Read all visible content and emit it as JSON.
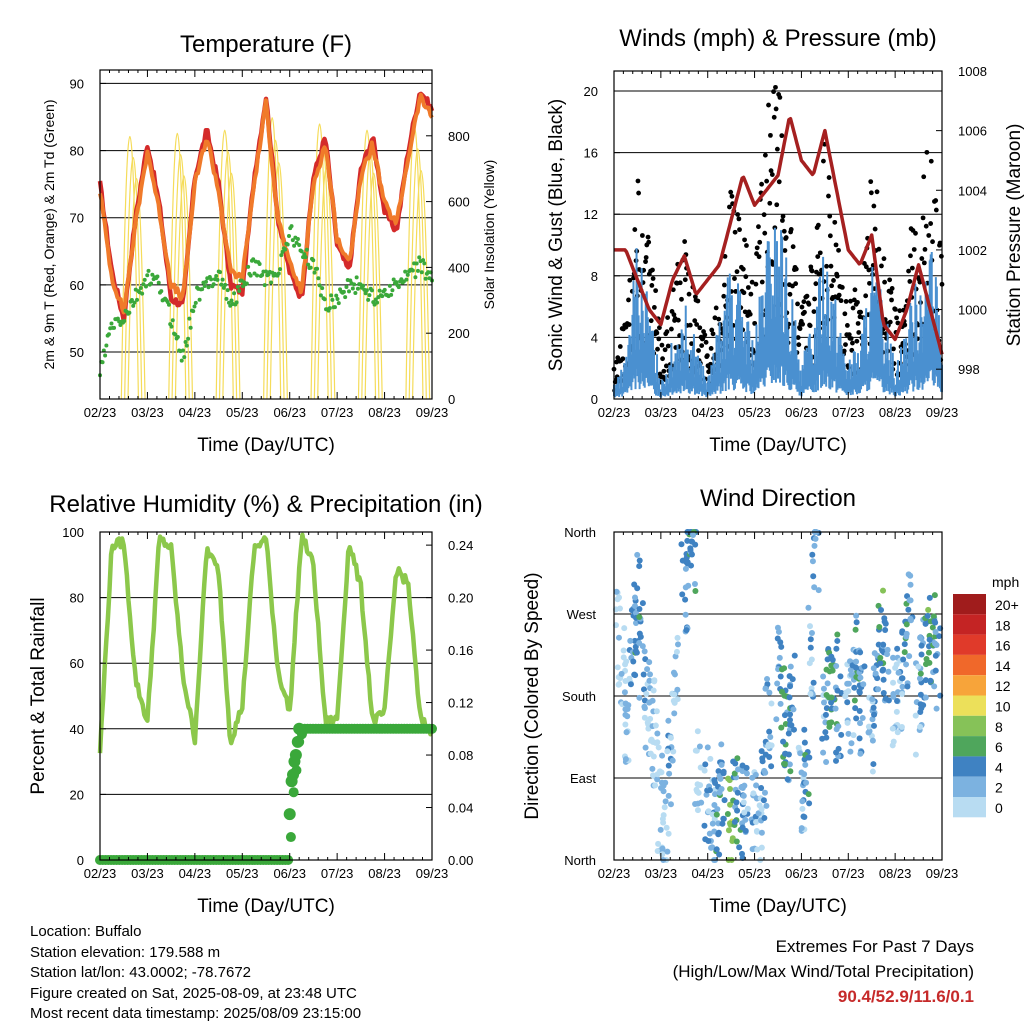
{
  "colors": {
    "temp_2m": "#d42a2a",
    "temp_9m": "#f07a2a",
    "dewpoint": "#3aa83a",
    "solar": "#f5dc5a",
    "gust": "#000000",
    "sonic": "#4a90d0",
    "pressure": "#a52020",
    "rh": "#8cc84b",
    "rain": "#3aa83a",
    "extremes": "#c62a2a"
  },
  "info": {
    "location": "Location: Buffalo",
    "elevation": "Station elevation: 179.588 m",
    "latlon": "Station lat/lon: 43.0002; -78.7672",
    "created": "Figure created on Sat, 2025-08-09, at 23:48 UTC",
    "recent": "Most recent data timestamp: 2025/08/09 23:15:00"
  },
  "extremes": {
    "title": "Extremes For Past 7 Days",
    "subtitle": "(High/Low/Max Wind/Total Precipitation)",
    "value": "90.4/52.9/11.6/0.1"
  },
  "chart_data": [
    {
      "type": "line",
      "title": "Temperature (F)",
      "xlabel": "Time (Day/UTC)",
      "ylabel": "2m & 9m T (Red, Orange) & 2m Td (Green)",
      "y2label": "Solar Insolation (Yellow)",
      "x_ticks": [
        "02/23",
        "03/23",
        "04/23",
        "05/23",
        "06/23",
        "07/23",
        "08/23",
        "09/23"
      ],
      "ylim": [
        43,
        92
      ],
      "y_ticks": [
        50,
        60,
        70,
        80,
        90
      ],
      "y2lim": [
        0,
        1000
      ],
      "y2_ticks": [
        0,
        200,
        400,
        600,
        800
      ],
      "grid_lines": [
        50,
        60,
        70,
        80,
        90
      ],
      "series": [
        {
          "name": "2m T",
          "kind": "line",
          "x": [
            0,
            0.25,
            0.5,
            0.75,
            1,
            1.25,
            1.5,
            1.75,
            2,
            2.25,
            2.5,
            2.75,
            3,
            3.25,
            3.5,
            3.75,
            4,
            4.25,
            4.5,
            4.75,
            5,
            5.25,
            5.5,
            5.75,
            6,
            6.25,
            6.5,
            6.75,
            7
          ],
          "values": [
            75,
            62,
            55,
            70,
            81,
            72,
            58,
            57,
            76,
            83,
            75,
            60,
            59,
            76,
            88,
            70,
            62,
            58,
            76,
            82,
            66,
            62,
            77,
            82,
            71,
            68,
            80,
            89,
            86
          ]
        },
        {
          "name": "9m T",
          "kind": "line",
          "x": [
            0,
            0.25,
            0.5,
            0.75,
            1,
            1.25,
            1.5,
            1.75,
            2,
            2.25,
            2.5,
            2.75,
            3,
            3.25,
            3.5,
            3.75,
            4,
            4.25,
            4.5,
            4.75,
            5,
            5.25,
            5.5,
            5.75,
            6,
            6.25,
            6.5,
            6.75,
            7
          ],
          "values": [
            74,
            61,
            56,
            69,
            80,
            71,
            60,
            58,
            75,
            82,
            74,
            62,
            61,
            75,
            87,
            70,
            63,
            59,
            75,
            81,
            67,
            63,
            76,
            81,
            72,
            69,
            79,
            88,
            85
          ]
        },
        {
          "name": "2m Td",
          "kind": "points",
          "x": [
            0,
            0.25,
            0.5,
            0.75,
            1,
            1.25,
            1.5,
            1.75,
            2,
            2.25,
            2.5,
            2.75,
            3,
            3.25,
            3.5,
            3.75,
            4,
            4.25,
            4.5,
            4.75,
            5,
            5.25,
            5.5,
            5.75,
            6,
            6.25,
            6.5,
            6.75,
            7
          ],
          "values": [
            47,
            54,
            55,
            58,
            61,
            60,
            55,
            49,
            58,
            60,
            62,
            57,
            60,
            63,
            61,
            62,
            68,
            65,
            63,
            57,
            58,
            60,
            60,
            58,
            59,
            60,
            61,
            63,
            61
          ]
        },
        {
          "name": "Solar",
          "kind": "solar",
          "y_axis": "right",
          "x": [
            0.7,
            1.7,
            2.7,
            3.7,
            4.7,
            5.7,
            6.7
          ],
          "values": [
            840,
            850,
            860,
            900,
            880,
            860,
            870
          ]
        }
      ]
    },
    {
      "type": "line",
      "title": "Winds (mph) & Pressure (mb)",
      "xlabel": "Time (Day/UTC)",
      "ylabel": "Sonic Wind & Gust (Blue, Black)",
      "y2label": "Station Pressure (Maroon)",
      "x_ticks": [
        "02/23",
        "03/23",
        "04/23",
        "05/23",
        "06/23",
        "07/23",
        "08/23",
        "09/23"
      ],
      "ylim": [
        0,
        21.3
      ],
      "y_ticks": [
        0,
        4,
        8,
        12,
        16,
        20
      ],
      "y2lim": [
        997,
        1008
      ],
      "y2_ticks": [
        998,
        1000,
        1002,
        1004,
        1006,
        1008
      ],
      "grid_lines": [
        4,
        8,
        12,
        16,
        20
      ],
      "series": [
        {
          "name": "Gust",
          "kind": "points",
          "x": [
            0,
            0.25,
            0.5,
            0.75,
            1,
            1.25,
            1.5,
            1.75,
            2,
            2.25,
            2.5,
            2.75,
            3,
            3.25,
            3.5,
            3.75,
            4,
            4.25,
            4.5,
            4.75,
            5,
            5.25,
            5.5,
            5.75,
            6,
            6.25,
            6.5,
            6.75,
            7
          ],
          "values": [
            2,
            5,
            13,
            10,
            3,
            6,
            9,
            6,
            3,
            8,
            12,
            9,
            7,
            16,
            18,
            11,
            5,
            8,
            14,
            9,
            5,
            7,
            13,
            10,
            5,
            8,
            12,
            14,
            8
          ]
        },
        {
          "name": "Sonic Wind",
          "kind": "line",
          "x": [
            0,
            0.25,
            0.5,
            0.75,
            1,
            1.25,
            1.5,
            1.75,
            2,
            2.25,
            2.5,
            2.75,
            3,
            3.25,
            3.5,
            3.75,
            4,
            4.25,
            4.5,
            4.75,
            5,
            5.25,
            5.5,
            5.75,
            6,
            6.25,
            6.5,
            6.75,
            7
          ],
          "values": [
            1,
            2,
            8,
            5,
            1,
            3,
            5,
            3,
            1,
            4,
            7,
            5,
            3,
            8,
            10,
            6,
            2,
            4,
            9,
            5,
            2,
            3,
            7,
            5,
            2,
            4,
            7,
            8,
            4
          ]
        },
        {
          "name": "Pressure",
          "kind": "line",
          "y_axis": "right",
          "x": [
            0,
            0.25,
            0.5,
            0.75,
            1,
            1.25,
            1.5,
            1.75,
            2,
            2.25,
            2.5,
            2.75,
            3,
            3.25,
            3.5,
            3.75,
            4,
            4.25,
            4.5,
            4.75,
            5,
            5.25,
            5.5,
            5.75,
            6,
            6.25,
            6.5,
            6.75,
            7
          ],
          "values": [
            1002,
            1002,
            1001,
            1000,
            999.5,
            1001,
            1001.8,
            1000.5,
            1001,
            1001.5,
            1003,
            1004.5,
            1003.5,
            1004,
            1004.5,
            1006.5,
            1005,
            1004.5,
            1006,
            1004,
            1002,
            1001.5,
            1002.5,
            999.5,
            999,
            1000,
            1001.5,
            1000,
            998.5
          ]
        }
      ]
    },
    {
      "type": "line",
      "title": "Relative Humidity (%) & Precipitation (in)",
      "xlabel": "Time (Day/UTC)",
      "ylabel": "Percent & Total Rainfall",
      "x_ticks": [
        "02/23",
        "03/23",
        "04/23",
        "05/23",
        "06/23",
        "07/23",
        "08/23",
        "09/23"
      ],
      "ylim": [
        0,
        100
      ],
      "y_ticks": [
        0,
        20,
        40,
        60,
        80,
        100
      ],
      "y2lim": [
        0,
        0.25
      ],
      "y2_ticks": [
        "0.00",
        "0.04",
        "0.08",
        "0.12",
        "0.16",
        "0.20",
        "0.24"
      ],
      "grid_lines": [
        20,
        40,
        60,
        80
      ],
      "series": [
        {
          "name": "RH",
          "kind": "line",
          "x": [
            0,
            0.25,
            0.5,
            0.75,
            1,
            1.25,
            1.5,
            1.75,
            2,
            2.25,
            2.5,
            2.75,
            3,
            3.25,
            3.5,
            3.75,
            4,
            4.25,
            4.5,
            4.75,
            5,
            5.25,
            5.5,
            5.75,
            6,
            6.25,
            6.5,
            6.75,
            7
          ],
          "values": [
            33,
            96,
            97,
            55,
            42,
            98,
            95,
            56,
            37,
            95,
            88,
            36,
            47,
            95,
            98,
            58,
            45,
            99,
            90,
            42,
            43,
            97,
            83,
            42,
            45,
            89,
            84,
            43,
            39
          ]
        },
        {
          "name": "Rainfall",
          "kind": "points",
          "y_axis": "right",
          "x": [
            0,
            0.5,
            1,
            1.5,
            2,
            2.5,
            3,
            3.5,
            4,
            4.05,
            4.1,
            4.15,
            4.2,
            4.3,
            4.5,
            5,
            5.5,
            6,
            6.5,
            7
          ],
          "values": [
            0,
            0,
            0,
            0,
            0,
            0,
            0,
            0,
            0,
            0.035,
            0.06,
            0.07,
            0.09,
            0.1,
            0.1,
            0.1,
            0.1,
            0.1,
            0.1,
            0.1
          ]
        }
      ]
    },
    {
      "type": "scatter",
      "title": "Wind Direction",
      "xlabel": "Time (Day/UTC)",
      "ylabel": "Direction (Colored By Speed)",
      "x_ticks": [
        "02/23",
        "03/23",
        "04/23",
        "05/23",
        "06/23",
        "07/23",
        "08/23",
        "09/23"
      ],
      "y_ticks": [
        "North",
        "East",
        "South",
        "West",
        "North"
      ],
      "ylim": [
        0,
        360
      ],
      "legend": {
        "title": "mph",
        "labels": [
          "20+",
          "18",
          "16",
          "14",
          "12",
          "10",
          "8",
          "6",
          "4",
          "2",
          "0"
        ],
        "colors": [
          "#a01c1c",
          "#c42424",
          "#e03a2a",
          "#f0682a",
          "#f7a43a",
          "#ece05a",
          "#86c258",
          "#4fa65c",
          "#3f82c2",
          "#7cb2e0",
          "#b8dcf2"
        ]
      },
      "series": [
        {
          "name": "Direction",
          "kind": "colored-points",
          "x": [
            0.1,
            0.2,
            0.3,
            0.4,
            0.5,
            0.6,
            0.7,
            0.8,
            0.9,
            1.0,
            1.1,
            1.2,
            1.3,
            1.5,
            1.6,
            1.7,
            1.8,
            2.0,
            2.1,
            2.2,
            2.3,
            2.5,
            2.6,
            2.7,
            2.8,
            3.0,
            3.1,
            3.2,
            3.3,
            3.5,
            3.6,
            3.7,
            3.8,
            4.0,
            4.1,
            4.2,
            4.3,
            4.5,
            4.6,
            4.7,
            4.8,
            5.0,
            5.1,
            5.2,
            5.3,
            5.5,
            5.6,
            5.7,
            5.8,
            6.0,
            6.1,
            6.2,
            6.3,
            6.5,
            6.6,
            6.7,
            6.8,
            6.9
          ],
          "values": [
            240,
            200,
            160,
            250,
            280,
            230,
            170,
            150,
            120,
            60,
            30,
            100,
            200,
            300,
            350,
            340,
            100,
            70,
            40,
            60,
            90,
            40,
            70,
            50,
            80,
            60,
            30,
            90,
            150,
            200,
            160,
            140,
            190,
            80,
            90,
            230,
            350,
            150,
            180,
            200,
            160,
            170,
            190,
            220,
            160,
            150,
            200,
            250,
            220,
            170,
            190,
            240,
            260,
            170,
            210,
            240,
            250,
            220
          ],
          "speeds": [
            1,
            1,
            2,
            4,
            5,
            4,
            2,
            1,
            1,
            1,
            2,
            3,
            2,
            4,
            5,
            4,
            1,
            3,
            3,
            5,
            4,
            9,
            5,
            4,
            3,
            3,
            2,
            4,
            3,
            4,
            6,
            5,
            4,
            3,
            5,
            3,
            4,
            3,
            6,
            5,
            4,
            2,
            3,
            5,
            4,
            3,
            4,
            6,
            4,
            2,
            3,
            5,
            4,
            3,
            5,
            6,
            5,
            4
          ]
        }
      ]
    }
  ]
}
